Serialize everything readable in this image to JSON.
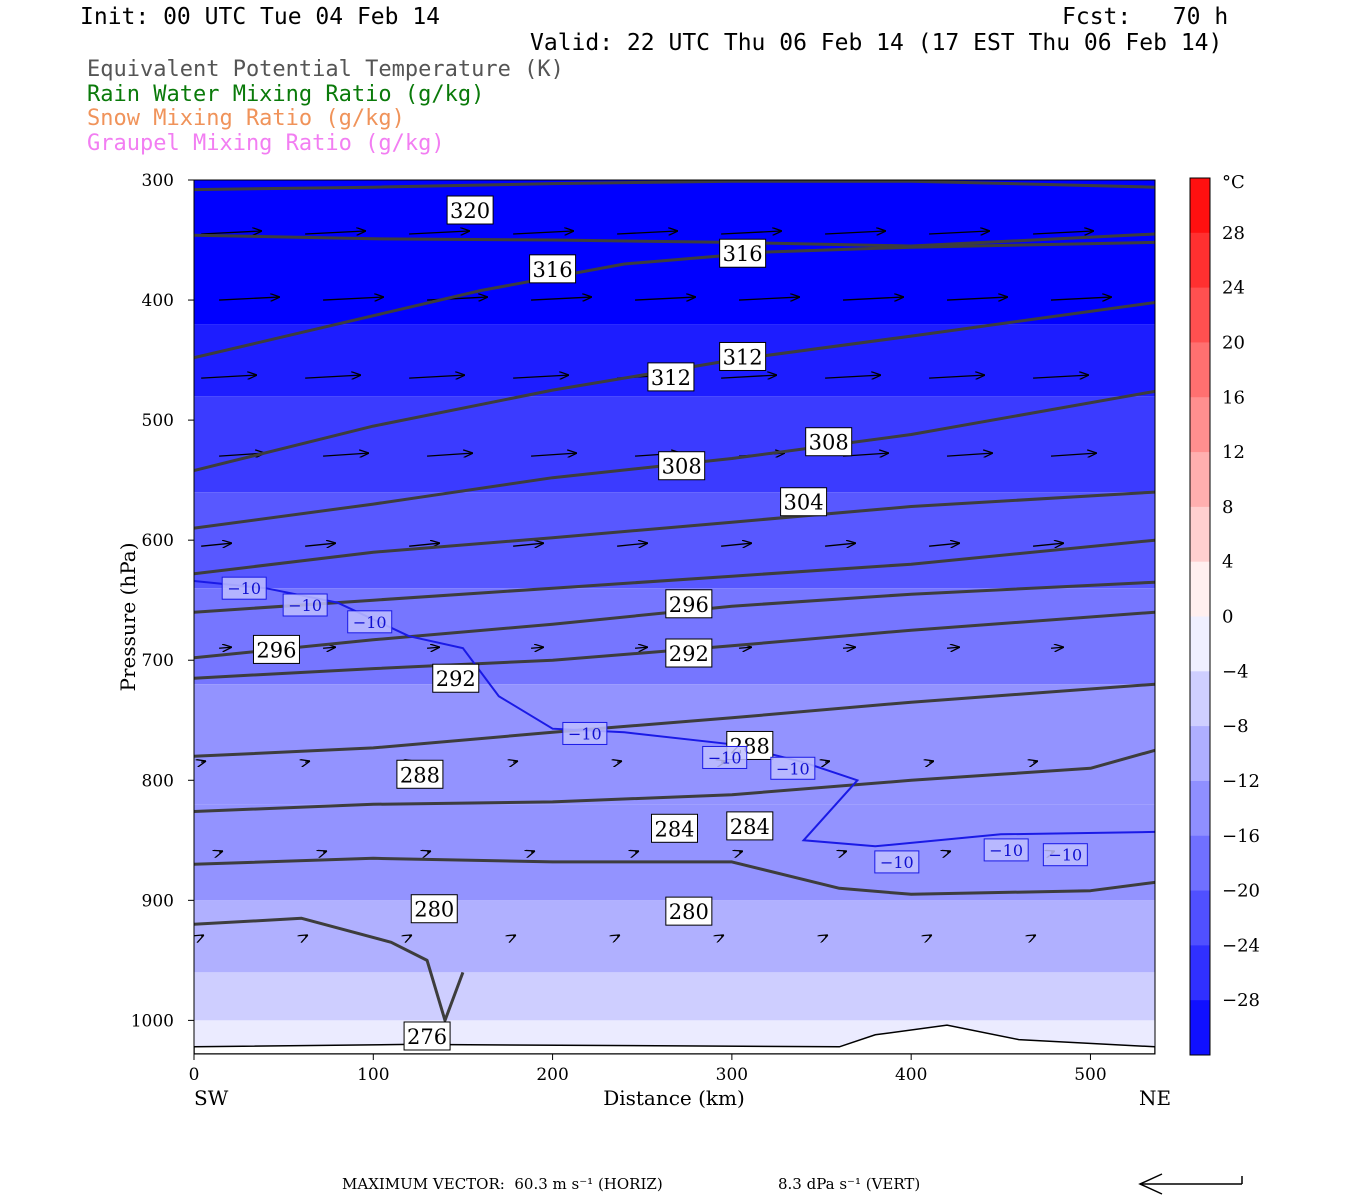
{
  "header": {
    "init": "Init: 00 UTC Tue 04 Feb 14",
    "fcst": "Fcst:   70 h",
    "valid": "Valid: 22 UTC Thu 06 Feb 14 (17 EST Thu 06 Feb 14)"
  },
  "legend": {
    "theta": "Equivalent Potential Temperature (K)",
    "rain": "Rain Water Mixing Ratio (g/kg)",
    "snow": "Snow Mixing Ratio (g/kg)",
    "graupel": "Graupel Mixing Ratio (g/kg)",
    "colors": {
      "theta": "#555555",
      "rain": "#0a7a0a",
      "snow": "#f0935a",
      "graupel": "#f27ef2"
    }
  },
  "footer": {
    "max_vector_label": "MAXIMUM VECTOR:",
    "horiz": "60.3 m s⁻¹ (HORIZ)",
    "vert": "8.3 dPa s⁻¹ (VERT)"
  },
  "chart_data": {
    "type": "contour-cross-section",
    "xlabel": "Distance (km)",
    "ylabel": "Pressure (hPa)",
    "xlim": [
      0,
      536
    ],
    "ylim": [
      1028,
      300
    ],
    "x_ticks": [
      0,
      100,
      200,
      300,
      400,
      500
    ],
    "y_ticks": [
      300,
      400,
      500,
      600,
      700,
      800,
      900,
      1000
    ],
    "x_end_labels": {
      "left": "SW",
      "right": "NE"
    },
    "colorbar": {
      "unit": "°C",
      "ticks": [
        "28",
        "24",
        "20",
        "16",
        "12",
        "8",
        "4",
        "0",
        "−4",
        "−8",
        "−12",
        "−16",
        "−20",
        "−24",
        "−28"
      ],
      "min": -32,
      "max": 32,
      "step": 4
    },
    "fill_temperature_bands": [
      {
        "p": [
          300,
          420
        ],
        "t": -32
      },
      {
        "p": [
          420,
          480
        ],
        "t": -28
      },
      {
        "p": [
          480,
          560
        ],
        "t": -24
      },
      {
        "p": [
          560,
          640
        ],
        "t": -20
      },
      {
        "p": [
          640,
          720
        ],
        "t": -16
      },
      {
        "p": [
          720,
          820
        ],
        "t": -12
      },
      {
        "p": [
          820,
          900
        ],
        "t": -12
      },
      {
        "p": [
          900,
          960
        ],
        "t": -8
      },
      {
        "p": [
          960,
          1000
        ],
        "t": -4
      },
      {
        "p": [
          1000,
          1028
        ],
        "t": 0
      }
    ],
    "theta_e_contours": [
      {
        "level": 320,
        "points": [
          [
            0,
            308
          ],
          [
            100,
            306
          ],
          [
            200,
            303
          ],
          [
            300,
            301
          ],
          [
            400,
            301
          ],
          [
            536,
            306
          ]
        ]
      },
      {
        "level": 316,
        "points": [
          [
            0,
            346
          ],
          [
            100,
            349
          ],
          [
            200,
            350
          ],
          [
            300,
            352
          ],
          [
            400,
            355
          ],
          [
            536,
            345
          ]
        ]
      },
      {
        "level": 316,
        "points": [
          [
            0,
            448
          ],
          [
            80,
            420
          ],
          [
            160,
            392
          ],
          [
            240,
            370
          ],
          [
            320,
            360
          ],
          [
            400,
            356
          ],
          [
            536,
            352
          ]
        ]
      },
      {
        "level": 312,
        "points": [
          [
            0,
            542
          ],
          [
            100,
            505
          ],
          [
            200,
            475
          ],
          [
            300,
            450
          ],
          [
            400,
            430
          ],
          [
            536,
            402
          ]
        ]
      },
      {
        "level": 308,
        "points": [
          [
            0,
            590
          ],
          [
            100,
            570
          ],
          [
            200,
            548
          ],
          [
            300,
            532
          ],
          [
            400,
            512
          ],
          [
            536,
            476
          ]
        ]
      },
      {
        "level": 304,
        "points": [
          [
            0,
            628
          ],
          [
            100,
            610
          ],
          [
            200,
            598
          ],
          [
            300,
            585
          ],
          [
            400,
            572
          ],
          [
            536,
            560
          ]
        ]
      },
      {
        "level": 300,
        "points": [
          [
            0,
            660
          ],
          [
            100,
            650
          ],
          [
            200,
            640
          ],
          [
            300,
            630
          ],
          [
            400,
            620
          ],
          [
            536,
            600
          ]
        ]
      },
      {
        "level": 296,
        "points": [
          [
            0,
            698
          ],
          [
            100,
            683
          ],
          [
            200,
            670
          ],
          [
            300,
            655
          ],
          [
            400,
            645
          ],
          [
            536,
            635
          ]
        ]
      },
      {
        "level": 292,
        "points": [
          [
            0,
            715
          ],
          [
            100,
            707
          ],
          [
            200,
            700
          ],
          [
            300,
            688
          ],
          [
            400,
            675
          ],
          [
            536,
            660
          ]
        ]
      },
      {
        "level": 288,
        "points": [
          [
            0,
            780
          ],
          [
            100,
            773
          ],
          [
            200,
            760
          ],
          [
            300,
            748
          ],
          [
            400,
            735
          ],
          [
            536,
            720
          ]
        ]
      },
      {
        "level": 284,
        "points": [
          [
            0,
            826
          ],
          [
            100,
            820
          ],
          [
            200,
            818
          ],
          [
            300,
            812
          ],
          [
            400,
            800
          ],
          [
            450,
            795
          ],
          [
            500,
            790
          ],
          [
            536,
            775
          ]
        ]
      },
      {
        "level": 280,
        "points": [
          [
            0,
            870
          ],
          [
            100,
            865
          ],
          [
            200,
            868
          ],
          [
            300,
            868
          ],
          [
            360,
            890
          ],
          [
            400,
            895
          ],
          [
            500,
            892
          ],
          [
            536,
            885
          ]
        ]
      },
      {
        "level": 276,
        "points": [
          [
            0,
            920
          ],
          [
            60,
            915
          ],
          [
            110,
            935
          ],
          [
            130,
            950
          ],
          [
            140,
            1000
          ],
          [
            150,
            960
          ]
        ]
      }
    ],
    "theta_e_labels": [
      {
        "text": "320",
        "x": 154,
        "p": 325
      },
      {
        "text": "316",
        "x": 200,
        "p": 374
      },
      {
        "text": "316",
        "x": 306,
        "p": 361
      },
      {
        "text": "312",
        "x": 266,
        "p": 464
      },
      {
        "text": "312",
        "x": 306,
        "p": 447
      },
      {
        "text": "308",
        "x": 272,
        "p": 538
      },
      {
        "text": "308",
        "x": 354,
        "p": 518
      },
      {
        "text": "304",
        "x": 340,
        "p": 568
      },
      {
        "text": "296",
        "x": 276,
        "p": 653
      },
      {
        "text": "296",
        "x": 46,
        "p": 691
      },
      {
        "text": "292",
        "x": 276,
        "p": 694
      },
      {
        "text": "292",
        "x": 146,
        "p": 715
      },
      {
        "text": "288",
        "x": 310,
        "p": 771
      },
      {
        "text": "288",
        "x": 126,
        "p": 795
      },
      {
        "text": "284",
        "x": 268,
        "p": 840
      },
      {
        "text": "284",
        "x": 310,
        "p": 838
      },
      {
        "text": "280",
        "x": 134,
        "p": 907
      },
      {
        "text": "280",
        "x": 276,
        "p": 909
      },
      {
        "text": "276",
        "x": 130,
        "p": 1013
      }
    ],
    "isotherm_minus10": {
      "level": -10,
      "points": [
        [
          0,
          634
        ],
        [
          40,
          640
        ],
        [
          80,
          652
        ],
        [
          120,
          680
        ],
        [
          150,
          690
        ],
        [
          170,
          730
        ],
        [
          200,
          757
        ],
        [
          240,
          760
        ],
        [
          300,
          770
        ],
        [
          340,
          785
        ],
        [
          370,
          800
        ],
        [
          340,
          850
        ],
        [
          380,
          855
        ],
        [
          450,
          845
        ],
        [
          536,
          843
        ]
      ],
      "labels": [
        {
          "text": "−10",
          "x": 28,
          "p": 640
        },
        {
          "text": "−10",
          "x": 62,
          "p": 654
        },
        {
          "text": "−10",
          "x": 98,
          "p": 668
        },
        {
          "text": "−10",
          "x": 218,
          "p": 761
        },
        {
          "text": "−10",
          "x": 296,
          "p": 781
        },
        {
          "text": "−10",
          "x": 334,
          "p": 790
        },
        {
          "text": "−10",
          "x": 392,
          "p": 868
        },
        {
          "text": "−10",
          "x": 453,
          "p": 858
        },
        {
          "text": "−10",
          "x": 486,
          "p": 862
        }
      ]
    }
  }
}
